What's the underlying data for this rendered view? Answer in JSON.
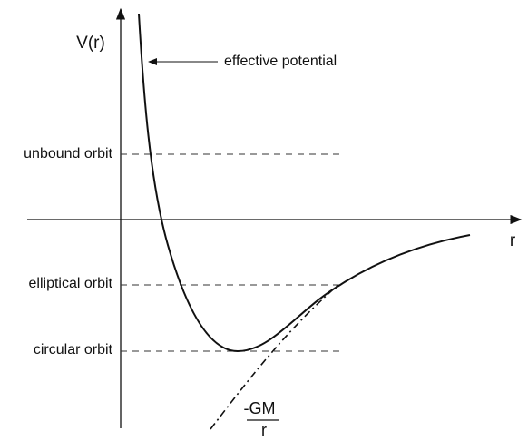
{
  "axes": {
    "y_label": "V(r)",
    "x_label": "r"
  },
  "curve_label": "effective potential",
  "levels": [
    "unbound orbit",
    "elliptical orbit",
    "circular orbit"
  ],
  "asymptote": {
    "numerator": "-GM",
    "denominator": "r"
  }
}
